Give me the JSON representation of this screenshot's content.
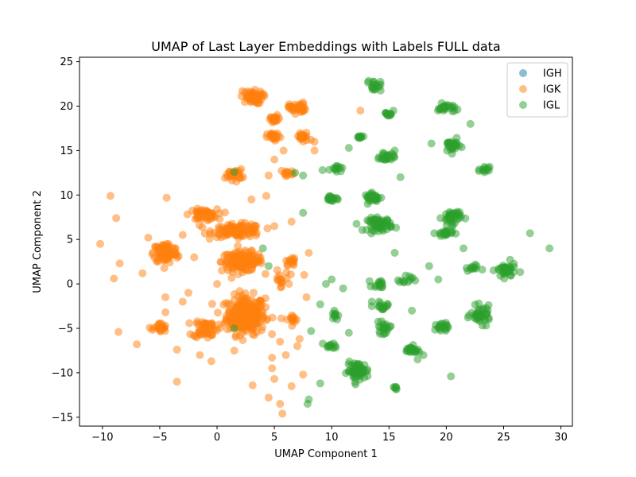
{
  "chart_data": {
    "type": "scatter",
    "title": "UMAP of Last Layer Embeddings with Labels FULL data",
    "xlabel": "UMAP Component 1",
    "ylabel": "UMAP Component 2",
    "xlim": [
      -12,
      31
    ],
    "ylim": [
      -16,
      25.5
    ],
    "x_ticks": [
      -10,
      -5,
      0,
      5,
      10,
      15,
      20,
      25,
      30
    ],
    "y_ticks": [
      -15,
      -10,
      -5,
      0,
      5,
      10,
      15,
      20,
      25
    ],
    "legend_position": "top-right",
    "grid": false,
    "point_alpha": 0.5,
    "series": [
      {
        "name": "IGH",
        "color": "#1f77b4",
        "clusters": []
      },
      {
        "name": "IGK",
        "color": "#ff7f0e",
        "clusters": [
          {
            "x": 2.5,
            "y": -3.5,
            "sx": 1.4,
            "sy": 1.8,
            "n": 260
          },
          {
            "x": 2.2,
            "y": 2.5,
            "sx": 1.5,
            "sy": 0.9,
            "n": 150
          },
          {
            "x": 1.8,
            "y": 6.0,
            "sx": 1.8,
            "sy": 0.6,
            "n": 110
          },
          {
            "x": -1.2,
            "y": 7.8,
            "sx": 1.0,
            "sy": 0.5,
            "n": 60
          },
          {
            "x": -4.5,
            "y": 3.5,
            "sx": 0.9,
            "sy": 1.0,
            "n": 90
          },
          {
            "x": -5.0,
            "y": -5.0,
            "sx": 0.5,
            "sy": 0.5,
            "n": 25
          },
          {
            "x": -1.0,
            "y": -5.0,
            "sx": 0.9,
            "sy": 0.9,
            "n": 50
          },
          {
            "x": 3.0,
            "y": 21.0,
            "sx": 0.8,
            "sy": 0.6,
            "n": 60
          },
          {
            "x": 7.0,
            "y": 19.8,
            "sx": 0.6,
            "sy": 0.5,
            "n": 40
          },
          {
            "x": 5.0,
            "y": 18.5,
            "sx": 0.5,
            "sy": 0.4,
            "n": 20
          },
          {
            "x": 5.0,
            "y": 16.5,
            "sx": 0.5,
            "sy": 0.4,
            "n": 20
          },
          {
            "x": 7.5,
            "y": 16.5,
            "sx": 0.5,
            "sy": 0.5,
            "n": 22
          },
          {
            "x": 1.5,
            "y": 12.3,
            "sx": 0.6,
            "sy": 0.5,
            "n": 30
          },
          {
            "x": 6.2,
            "y": 12.5,
            "sx": 0.5,
            "sy": 0.3,
            "n": 12
          },
          {
            "x": 6.5,
            "y": 2.5,
            "sx": 0.4,
            "sy": 0.4,
            "n": 14
          },
          {
            "x": 5.5,
            "y": 0.5,
            "sx": 0.6,
            "sy": 0.8,
            "n": 16
          },
          {
            "x": 6.5,
            "y": -4.0,
            "sx": 0.5,
            "sy": 0.5,
            "n": 14
          }
        ],
        "points": [
          [
            -10.2,
            4.5
          ],
          [
            -9.3,
            9.9
          ],
          [
            -8.8,
            7.4
          ],
          [
            -9.0,
            0.6
          ],
          [
            -8.6,
            -5.4
          ],
          [
            -8.5,
            2.3
          ],
          [
            -7.0,
            -6.8
          ],
          [
            -6.5,
            1.2
          ],
          [
            -6.0,
            5.2
          ],
          [
            -4.4,
            9.7
          ],
          [
            -4.5,
            -1.5
          ],
          [
            -4.5,
            -3.2
          ],
          [
            -3.5,
            -7.4
          ],
          [
            -3.5,
            -11.0
          ],
          [
            -3.0,
            -2.0
          ],
          [
            -2.5,
            -1.0
          ],
          [
            -3.0,
            5.5
          ],
          [
            -1.5,
            -8.0
          ],
          [
            -0.5,
            -8.7
          ],
          [
            1.5,
            -7.5
          ],
          [
            3.1,
            -11.4
          ],
          [
            4.5,
            -12.8
          ],
          [
            5.5,
            -13.5
          ],
          [
            5.7,
            -14.6
          ],
          [
            4.8,
            -9.5
          ],
          [
            5.0,
            -10.7
          ],
          [
            4.8,
            -8.3
          ],
          [
            5.5,
            -6.5
          ],
          [
            7.0,
            -7.0
          ],
          [
            7.2,
            -6.2
          ],
          [
            6.0,
            -8.0
          ],
          [
            7.5,
            -10.2
          ],
          [
            6.5,
            -11.5
          ],
          [
            7.8,
            -1.5
          ],
          [
            7.6,
            1.0
          ],
          [
            5.0,
            6.5
          ],
          [
            6.5,
            7.0
          ],
          [
            4.3,
            9.9
          ],
          [
            4.5,
            12.2
          ],
          [
            5.0,
            14.0
          ],
          [
            5.8,
            15.0
          ],
          [
            8.5,
            15.0
          ],
          [
            8.5,
            16.0
          ],
          [
            12.5,
            19.5
          ],
          [
            8.0,
            3.5
          ],
          [
            3.0,
            9.5
          ],
          [
            0.0,
            0.0
          ],
          [
            -2.0,
            3.0
          ]
        ]
      },
      {
        "name": "IGL",
        "color": "#2ca02c",
        "clusters": [
          {
            "x": 12.3,
            "y": -9.8,
            "sx": 0.8,
            "sy": 0.8,
            "n": 60
          },
          {
            "x": 14.2,
            "y": 6.7,
            "sx": 0.9,
            "sy": 0.6,
            "n": 60
          },
          {
            "x": 13.6,
            "y": 9.7,
            "sx": 0.6,
            "sy": 0.4,
            "n": 30
          },
          {
            "x": 20.5,
            "y": 7.5,
            "sx": 0.7,
            "sy": 0.7,
            "n": 40
          },
          {
            "x": 20.0,
            "y": 19.8,
            "sx": 0.6,
            "sy": 0.4,
            "n": 25
          },
          {
            "x": 20.5,
            "y": 15.5,
            "sx": 0.6,
            "sy": 0.6,
            "n": 30
          },
          {
            "x": 23.0,
            "y": -3.5,
            "sx": 0.7,
            "sy": 0.8,
            "n": 45
          },
          {
            "x": 25.2,
            "y": 1.5,
            "sx": 0.7,
            "sy": 0.7,
            "n": 40
          },
          {
            "x": 17.0,
            "y": -7.5,
            "sx": 0.6,
            "sy": 0.4,
            "n": 25
          },
          {
            "x": 14.8,
            "y": 14.3,
            "sx": 0.5,
            "sy": 0.4,
            "n": 25
          },
          {
            "x": 14.5,
            "y": -5.0,
            "sx": 0.5,
            "sy": 0.5,
            "n": 20
          },
          {
            "x": 14.5,
            "y": -2.5,
            "sx": 0.5,
            "sy": 0.5,
            "n": 15
          },
          {
            "x": 14.2,
            "y": 0.0,
            "sx": 0.5,
            "sy": 0.4,
            "n": 15
          },
          {
            "x": 13.7,
            "y": 22.3,
            "sx": 0.5,
            "sy": 0.5,
            "n": 18
          },
          {
            "x": 15.0,
            "y": 19.2,
            "sx": 0.3,
            "sy": 0.4,
            "n": 12
          },
          {
            "x": 10.0,
            "y": 9.6,
            "sx": 0.6,
            "sy": 0.3,
            "n": 18
          },
          {
            "x": 10.4,
            "y": 13.2,
            "sx": 0.4,
            "sy": 0.4,
            "n": 12
          },
          {
            "x": 12.4,
            "y": 16.4,
            "sx": 0.3,
            "sy": 0.3,
            "n": 10
          },
          {
            "x": 19.8,
            "y": 5.7,
            "sx": 0.6,
            "sy": 0.3,
            "n": 20
          },
          {
            "x": 22.3,
            "y": 1.8,
            "sx": 0.5,
            "sy": 0.3,
            "n": 12
          },
          {
            "x": 19.5,
            "y": -5.0,
            "sx": 0.6,
            "sy": 0.5,
            "n": 20
          },
          {
            "x": 16.5,
            "y": 0.5,
            "sx": 0.5,
            "sy": 0.5,
            "n": 12
          },
          {
            "x": 23.3,
            "y": 12.8,
            "sx": 0.4,
            "sy": 0.3,
            "n": 12
          },
          {
            "x": 10.0,
            "y": -7.0,
            "sx": 0.5,
            "sy": 0.3,
            "n": 12
          },
          {
            "x": 10.2,
            "y": -3.5,
            "sx": 0.3,
            "sy": 0.6,
            "n": 10
          },
          {
            "x": 15.5,
            "y": -11.8,
            "sx": 0.3,
            "sy": 0.2,
            "n": 6
          }
        ],
        "points": [
          [
            1.5,
            12.6
          ],
          [
            7.5,
            12.2
          ],
          [
            6.8,
            12.5
          ],
          [
            4.0,
            4.0
          ],
          [
            4.5,
            2.0
          ],
          [
            1.5,
            -5.0
          ],
          [
            7.5,
            8.0
          ],
          [
            8.0,
            -13.0
          ],
          [
            7.9,
            -13.5
          ],
          [
            8.2,
            -5.3
          ],
          [
            9.0,
            -2.3
          ],
          [
            9.0,
            -11.2
          ],
          [
            9.5,
            0.0
          ],
          [
            10.0,
            0.5
          ],
          [
            11.0,
            -0.5
          ],
          [
            11.5,
            -5.5
          ],
          [
            13.5,
            -2.5
          ],
          [
            13.5,
            -2.0
          ],
          [
            15.5,
            15.0
          ],
          [
            16.0,
            12.0
          ],
          [
            17.0,
            -3.0
          ],
          [
            18.0,
            -8.0
          ],
          [
            18.5,
            2.0
          ],
          [
            18.7,
            15.8
          ],
          [
            19.3,
            0.5
          ],
          [
            20.4,
            -10.4
          ],
          [
            21.5,
            4.0
          ],
          [
            22.1,
            18.0
          ],
          [
            27.3,
            5.7
          ],
          [
            29.0,
            4.0
          ],
          [
            11.5,
            15.3
          ],
          [
            9.2,
            12.8
          ],
          [
            17.5,
            -8.5
          ],
          [
            15.5,
            3.5
          ]
        ]
      }
    ]
  }
}
